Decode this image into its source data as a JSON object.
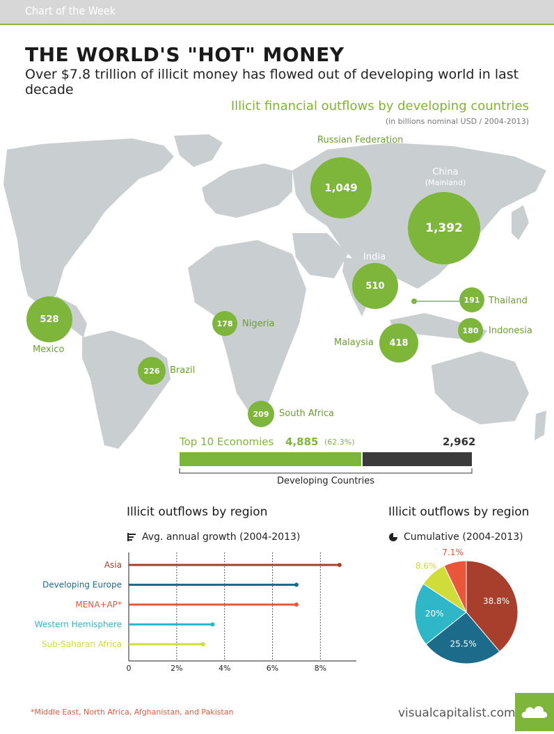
{
  "header": {
    "tag": "Chart of the Week"
  },
  "title": "THE WORLD'S \"HOT\" MONEY",
  "subtitle": "Over $7.8 trillion of illicit money has flowed out of developing world in last decade",
  "map": {
    "title": "Illicit financial outflows by developing countries",
    "note": "(in billions nominal USD / 2004-2013)",
    "countries": [
      {
        "name": "Russian Federation",
        "value": "1,049"
      },
      {
        "name": "China",
        "sub": "(Mainland)",
        "value": "1,392"
      },
      {
        "name": "India",
        "value": "510"
      },
      {
        "name": "Thailand",
        "value": "191"
      },
      {
        "name": "Indonesia",
        "value": "180"
      },
      {
        "name": "Malaysia",
        "value": "418"
      },
      {
        "name": "Mexico",
        "value": "528"
      },
      {
        "name": "Nigeria",
        "value": "178"
      },
      {
        "name": "Brazil",
        "value": "226"
      },
      {
        "name": "South Africa",
        "value": "209"
      }
    ]
  },
  "summary": {
    "top_label": "Top 10 Economies",
    "top_value": "4,885",
    "top_pct": "(62.3%)",
    "rest_value": "2,962",
    "axis_label": "Developing Countries",
    "top_color": "#7db63a",
    "rest_color": "#3b3b3b"
  },
  "chart_data": [
    {
      "type": "bar",
      "title": "Illicit outflows by region",
      "subtitle": "Avg. annual growth (2004-2013)",
      "categories": [
        "Asia",
        "Developing Europe",
        "MENA+AP*",
        "Western Hemisphere",
        "Sub-Saharan Africa"
      ],
      "values": [
        8.8,
        7.0,
        7.0,
        3.5,
        3.1
      ],
      "colors": [
        "#a83f2c",
        "#1c6b8a",
        "#e8573a",
        "#2fb7c7",
        "#cfdc3a"
      ],
      "xlim": [
        0,
        9.5
      ],
      "ticks": [
        "0",
        "2%",
        "4%",
        "6%",
        "8%"
      ],
      "tick_values": [
        0,
        2,
        4,
        6,
        8
      ]
    },
    {
      "type": "pie",
      "title": "Illicit outflows by region",
      "subtitle": "Cumulative (2004-2013)",
      "values": [
        38.8,
        25.5,
        20,
        8.6,
        7.1
      ],
      "labels": [
        "38.8%",
        "25.5%",
        "20%",
        "8.6%",
        "7.1%"
      ],
      "colors": [
        "#a83f2c",
        "#1c6b8a",
        "#2fb7c7",
        "#cfdc3a",
        "#e8573a"
      ]
    }
  ],
  "footnote": "*Middle East, North Africa, Afghanistan, and Pakistan",
  "brand": "visualcapitalist.com"
}
